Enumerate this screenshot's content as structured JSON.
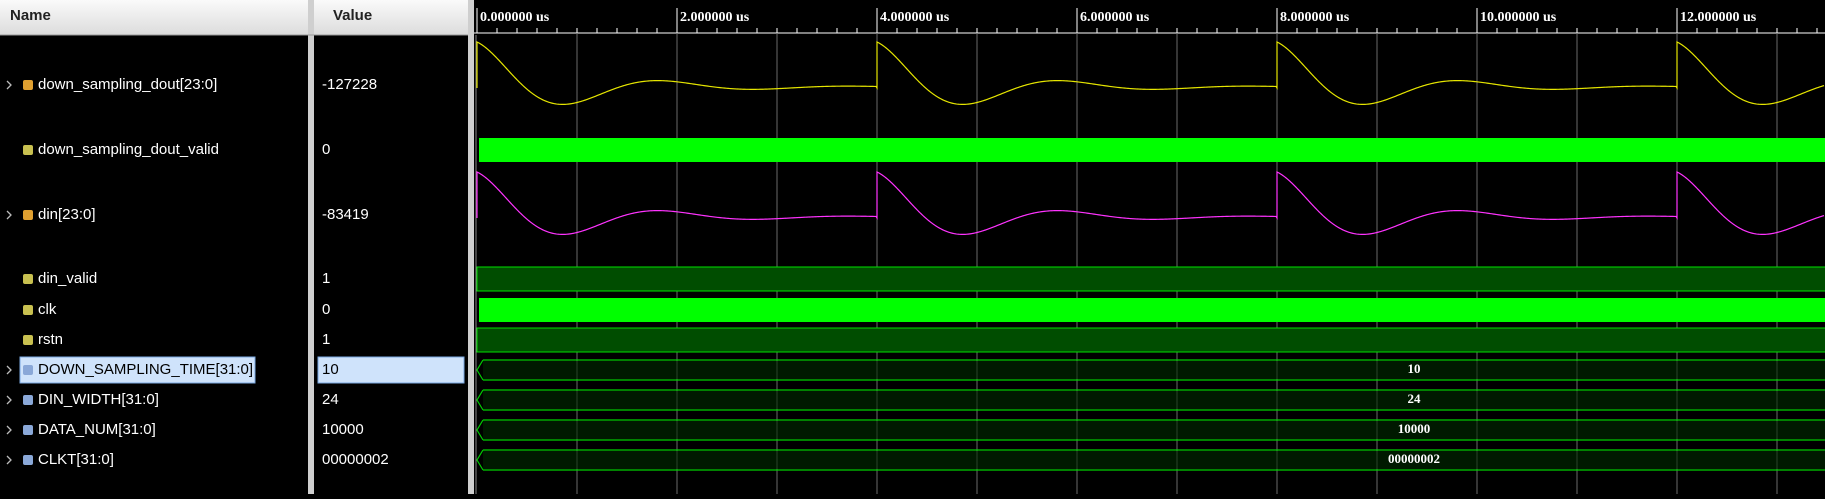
{
  "header": {
    "name": "Name",
    "value": "Value"
  },
  "timeline": {
    "ticks": [
      "0.000000 us",
      "2.000000 us",
      "4.000000 us",
      "6.000000 us",
      "8.000000 us",
      "10.000000 us",
      "12.000000 us"
    ]
  },
  "signals": [
    {
      "name": "down_sampling_dout[23:0]",
      "value": "-127228"
    },
    {
      "name": "down_sampling_dout_valid",
      "value": "0"
    },
    {
      "name": "din[23:0]",
      "value": "-83419"
    },
    {
      "name": "din_valid",
      "value": "1"
    },
    {
      "name": "clk",
      "value": "0"
    },
    {
      "name": "rstn",
      "value": "1"
    },
    {
      "name": "DOWN_SAMPLING_TIME[31:0]",
      "value": "10"
    },
    {
      "name": "DIN_WIDTH[31:0]",
      "value": "24"
    },
    {
      "name": "DATA_NUM[31:0]",
      "value": "10000"
    },
    {
      "name": "CLKT[31:0]",
      "value": "00000002"
    }
  ]
}
